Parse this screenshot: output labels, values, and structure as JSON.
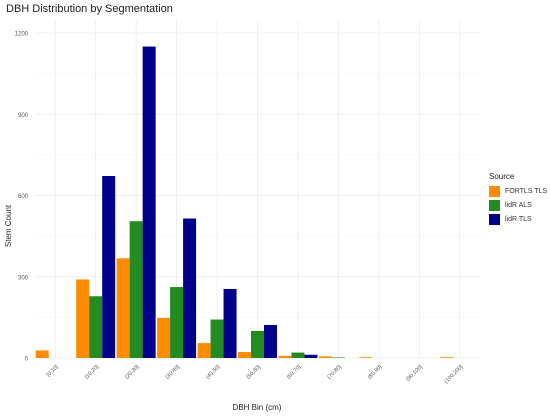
{
  "chart_data": {
    "type": "bar",
    "title": "DBH Distribution by Segmentation",
    "xlabel": "DBH Bin (cm)",
    "ylabel": "Stem Count",
    "ylim": [
      0,
      1200
    ],
    "yticks": [
      0,
      300,
      600,
      900,
      1200
    ],
    "grid": true,
    "legend_position": "right",
    "legend_title": "Source",
    "categories": [
      "[0,10]",
      "(10,20]",
      "(20,30]",
      "(30,40]",
      "(40,50]",
      "(50,60]",
      "(60,70]",
      "(70,80]",
      "(80,90]",
      "(90,100]",
      "(100,200]"
    ],
    "series": [
      {
        "name": "FORTLS TLS",
        "color": "#FF8C00",
        "values": [
          28,
          290,
          368,
          148,
          55,
          22,
          8,
          6,
          3,
          0,
          3
        ]
      },
      {
        "name": "lidR ALS",
        "color": "#228B22",
        "values": [
          0,
          228,
          505,
          262,
          142,
          100,
          20,
          2,
          0,
          0,
          0
        ]
      },
      {
        "name": "lidR TLS",
        "color": "#00008B",
        "values": [
          0,
          672,
          1150,
          515,
          255,
          122,
          12,
          0,
          0,
          0,
          0
        ]
      }
    ]
  }
}
